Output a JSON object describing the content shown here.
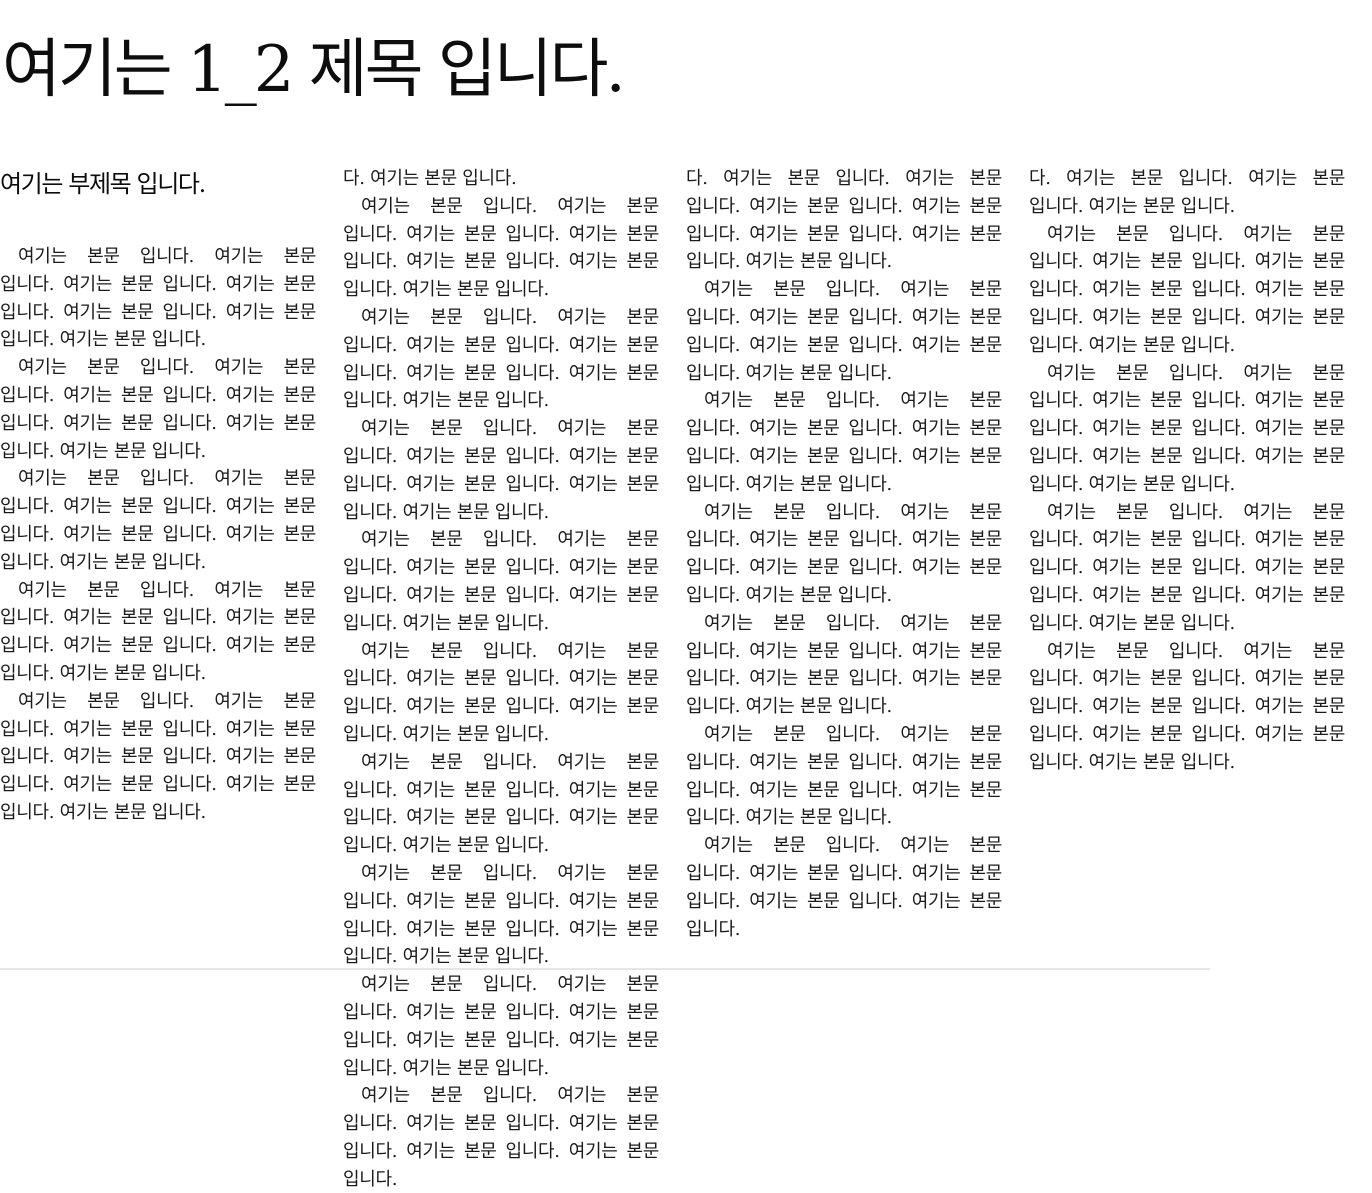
{
  "document": {
    "title": "여기는 1_2 제목 입니다.",
    "subtitle": "여기는 부제목 입니다.",
    "columns": [
      {
        "paragraphs": [
          {
            "text": "여기는 본문 입니다. 여기는 본문 입니다. 여기는 본문 입니다. 여기는 본문 입니다. 여기는 본문 입니다. 여기는 본문 입니다. 여기는 본문 입니다.",
            "continued": false
          },
          {
            "text": "여기는 본문 입니다. 여기는 본문 입니다. 여기는 본문 입니다. 여기는 본문 입니다. 여기는 본문 입니다. 여기는 본문 입니다. 여기는 본문 입니다.",
            "continued": false
          },
          {
            "text": "여기는 본문 입니다. 여기는 본문 입니다. 여기는 본문 입니다. 여기는 본문 입니다. 여기는 본문 입니다. 여기는 본문 입니다. 여기는 본문 입니다.",
            "continued": false
          },
          {
            "text": "여기는 본문 입니다. 여기는 본문 입니다. 여기는 본문 입니다. 여기는 본문 입니다. 여기는 본문 입니다. 여기는 본문 입니다. 여기는 본문 입니다.",
            "continued": false
          },
          {
            "text": "여기는 본문 입니다. 여기는 본문 입니다. 여기는 본문 입니다. 여기는 본문 입니다. 여기는 본문 입니다. 여기는 본문 입니다. 여기는 본문 입니다. 여기는 본문 입니다. 여기는 본문 입니다.",
            "continued": false
          }
        ]
      },
      {
        "paragraphs": [
          {
            "text": "다. 여기는 본문 입니다.",
            "continued": true
          },
          {
            "text": "여기는 본문 입니다. 여기는 본문 입니다. 여기는 본문 입니다. 여기는 본문 입니다. 여기는 본문 입니다. 여기는 본문 입니다. 여기는 본문 입니다.",
            "continued": false
          },
          {
            "text": "여기는 본문 입니다. 여기는 본문 입니다. 여기는 본문 입니다. 여기는 본문 입니다. 여기는 본문 입니다. 여기는 본문 입니다. 여기는 본문 입니다.",
            "continued": false
          },
          {
            "text": "여기는 본문 입니다. 여기는 본문 입니다. 여기는 본문 입니다. 여기는 본문 입니다. 여기는 본문 입니다. 여기는 본문 입니다. 여기는 본문 입니다.",
            "continued": false
          },
          {
            "text": "여기는 본문 입니다. 여기는 본문 입니다. 여기는 본문 입니다. 여기는 본문 입니다. 여기는 본문 입니다. 여기는 본문 입니다. 여기는 본문 입니다.",
            "continued": false
          },
          {
            "text": "여기는 본문 입니다. 여기는 본문 입니다. 여기는 본문 입니다. 여기는 본문 입니다. 여기는 본문 입니다. 여기는 본문 입니다. 여기는 본문 입니다.",
            "continued": false
          },
          {
            "text": "여기는 본문 입니다. 여기는 본문 입니다. 여기는 본문 입니다. 여기는 본문 입니다. 여기는 본문 입니다. 여기는 본문 입니다. 여기는 본문 입니다.",
            "continued": false
          },
          {
            "text": "여기는 본문 입니다. 여기는 본문 입니다. 여기는 본문 입니다. 여기는 본문 입니다. 여기는 본문 입니다. 여기는 본문 입니다. 여기는 본문 입니다.",
            "continued": false
          },
          {
            "text": "여기는 본문 입니다. 여기는 본문 입니다. 여기는 본문 입니다. 여기는 본문 입니다. 여기는 본문 입니다. 여기는 본문 입니다. 여기는 본문 입니다.",
            "continued": false
          },
          {
            "text": "여기는 본문 입니다. 여기는 본문 입니다. 여기는 본문 입니다. 여기는 본문 입니다. 여기는 본문 입니다. 여기는 본문 입니다.",
            "continued": false
          }
        ]
      },
      {
        "paragraphs": [
          {
            "text": "다. 여기는 본문 입니다. 여기는 본문 입니다. 여기는 본문 입니다. 여기는 본문 입니다. 여기는 본문 입니다. 여기는 본문 입니다. 여기는 본문 입니다.",
            "continued": true
          },
          {
            "text": "여기는 본문 입니다. 여기는 본문 입니다. 여기는 본문 입니다. 여기는 본문 입니다. 여기는 본문 입니다. 여기는 본문 입니다. 여기는 본문 입니다.",
            "continued": false
          },
          {
            "text": "여기는 본문 입니다. 여기는 본문 입니다. 여기는 본문 입니다. 여기는 본문 입니다. 여기는 본문 입니다. 여기는 본문 입니다. 여기는 본문 입니다.",
            "continued": false
          },
          {
            "text": "여기는 본문 입니다. 여기는 본문 입니다. 여기는 본문 입니다. 여기는 본문 입니다. 여기는 본문 입니다. 여기는 본문 입니다. 여기는 본문 입니다.",
            "continued": false
          },
          {
            "text": "여기는 본문 입니다. 여기는 본문 입니다. 여기는 본문 입니다. 여기는 본문 입니다. 여기는 본문 입니다. 여기는 본문 입니다. 여기는 본문 입니다.",
            "continued": false
          },
          {
            "text": "여기는 본문 입니다. 여기는 본문 입니다. 여기는 본문 입니다. 여기는 본문 입니다. 여기는 본문 입니다. 여기는 본문 입니다. 여기는 본문 입니다.",
            "continued": false
          },
          {
            "text": "여기는 본문 입니다. 여기는 본문 입니다. 여기는 본문 입니다. 여기는 본문 입니다. 여기는 본문 입니다. 여기는 본문 입니다.",
            "continued": false
          }
        ]
      },
      {
        "paragraphs": [
          {
            "text": "다. 여기는 본문 입니다. 여기는 본문 입니다. 여기는 본문 입니다.",
            "continued": true
          },
          {
            "text": "여기는 본문 입니다. 여기는 본문 입니다. 여기는 본문 입니다. 여기는 본문 입니다. 여기는 본문 입니다. 여기는 본문 입니다. 여기는 본문 입니다. 여기는 본문 입니다. 여기는 본문 입니다.",
            "continued": false
          },
          {
            "text": "여기는 본문 입니다. 여기는 본문 입니다. 여기는 본문 입니다. 여기는 본문 입니다. 여기는 본문 입니다. 여기는 본문 입니다. 여기는 본문 입니다. 여기는 본문 입니다. 여기는 본문 입니다.",
            "continued": false
          },
          {
            "text": "여기는 본문 입니다. 여기는 본문 입니다. 여기는 본문 입니다. 여기는 본문 입니다. 여기는 본문 입니다. 여기는 본문 입니다. 여기는 본문 입니다. 여기는 본문 입니다. 여기는 본문 입니다.",
            "continued": false
          },
          {
            "text": "여기는 본문 입니다. 여기는 본문 입니다. 여기는 본문 입니다. 여기는 본문 입니다. 여기는 본문 입니다. 여기는 본문 입니다. 여기는 본문 입니다. 여기는 본문 입니다. 여기는 본문 입니다.",
            "continued": false
          }
        ]
      }
    ]
  }
}
